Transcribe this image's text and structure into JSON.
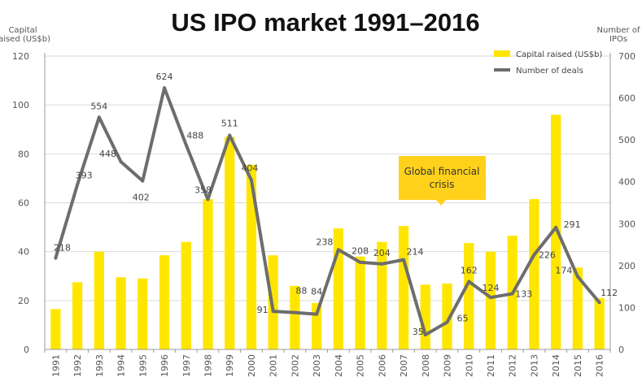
{
  "chart_data": {
    "type": "bar",
    "title": "US IPO market 1991–2016",
    "categories": [
      "1991",
      "1992",
      "1993",
      "1994",
      "1995",
      "1996",
      "1997",
      "1998",
      "1999",
      "2000",
      "2001",
      "2002",
      "2003",
      "2004",
      "2005",
      "2006",
      "2007",
      "2008",
      "2009",
      "2010",
      "2011",
      "2012",
      "2013",
      "2014",
      "2015",
      "2016"
    ],
    "series": [
      {
        "name": "Capital raised (US$b)",
        "type": "bar",
        "axis": "left",
        "color": "#ffe600",
        "values": [
          16.5,
          27.5,
          40,
          29.5,
          29,
          38.5,
          44,
          61.5,
          87,
          75.5,
          38.5,
          26,
          19,
          49.5,
          38,
          44,
          50.5,
          26.5,
          27,
          43.5,
          40,
          46.5,
          61.5,
          96,
          33.5,
          21
        ]
      },
      {
        "name": "Number of deals",
        "type": "line",
        "axis": "right",
        "color": "#6d6d6d",
        "values": [
          218,
          393,
          554,
          448,
          402,
          624,
          488,
          358,
          511,
          404,
          91,
          88,
          84,
          238,
          208,
          204,
          214,
          35,
          65,
          162,
          124,
          133,
          226,
          291,
          174,
          112
        ]
      }
    ],
    "ylabel": [
      "Capital",
      "raised (US$b)"
    ],
    "y2label": [
      "Number of",
      "IPOs"
    ],
    "ylim": [
      0,
      120
    ],
    "y2lim": [
      0,
      700
    ],
    "yticks": [
      0,
      20,
      40,
      60,
      80,
      100,
      120
    ],
    "y2ticks": [
      0,
      100,
      200,
      300,
      400,
      500,
      600,
      700
    ],
    "grid": true,
    "legend": "top-right",
    "annotations": [
      {
        "text": [
          "Global financial",
          "crisis"
        ],
        "near": "2007",
        "color": "#ffd11a"
      }
    ]
  }
}
